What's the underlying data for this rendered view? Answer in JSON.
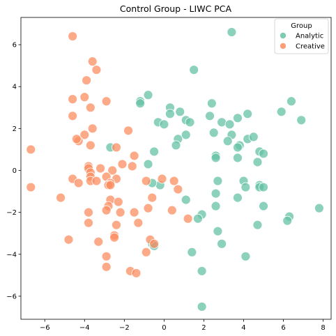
{
  "chart_data": {
    "type": "scatter",
    "title": "Control Group - LIWC PCA",
    "xlabel": "",
    "ylabel": "",
    "xlim": [
      -7.2,
      8.4
    ],
    "ylim": [
      -7.1,
      7.3
    ],
    "xticks": [
      -6,
      -4,
      -2,
      0,
      2,
      4,
      6,
      8
    ],
    "yticks": [
      -6,
      -4,
      -2,
      0,
      2,
      4,
      6
    ],
    "x_tick_labels": [
      "−6",
      "−4",
      "−2",
      "0",
      "2",
      "4",
      "6",
      "8"
    ],
    "y_tick_labels": [
      "−6",
      "−4",
      "−2",
      "0",
      "2",
      "4",
      "6"
    ],
    "grid": false,
    "legend": {
      "title": "Group",
      "placement": "top-right"
    },
    "series": [
      {
        "name": "Analytic",
        "color": "#66c2a5",
        "points": [
          [
            3.4,
            6.6
          ],
          [
            1.5,
            4.8
          ],
          [
            -0.8,
            3.6
          ],
          [
            -1.2,
            3.3
          ],
          [
            -1.2,
            3.2
          ],
          [
            0.3,
            3.0
          ],
          [
            0.3,
            2.7
          ],
          [
            0.8,
            2.8
          ],
          [
            -0.3,
            2.3
          ],
          [
            0.0,
            2.2
          ],
          [
            1.1,
            2.4
          ],
          [
            1.3,
            2.3
          ],
          [
            2.4,
            3.2
          ],
          [
            2.3,
            2.6
          ],
          [
            2.9,
            2.3
          ],
          [
            3.3,
            2.2
          ],
          [
            3.7,
            2.5
          ],
          [
            4.2,
            2.7
          ],
          [
            5.9,
            2.8
          ],
          [
            6.4,
            3.3
          ],
          [
            6.9,
            2.4
          ],
          [
            2.5,
            1.8
          ],
          [
            3.4,
            1.7
          ],
          [
            3.2,
            1.4
          ],
          [
            4.2,
            1.5
          ],
          [
            4.5,
            1.6
          ],
          [
            3.8,
            1.2
          ],
          [
            3.7,
            1.1
          ],
          [
            3.7,
            0.6
          ],
          [
            4.7,
            0.4
          ],
          [
            4.8,
            0.9
          ],
          [
            5.0,
            0.8
          ],
          [
            0.7,
            1.5
          ],
          [
            1.1,
            1.7
          ],
          [
            0.6,
            1.2
          ],
          [
            -2.7,
            1.1
          ],
          [
            -0.5,
            0.9
          ],
          [
            -0.8,
            0.3
          ],
          [
            2.6,
            0.7
          ],
          [
            2.6,
            0.6
          ],
          [
            2.7,
            -0.5
          ],
          [
            -0.2,
            -0.7
          ],
          [
            -0.6,
            -0.6
          ],
          [
            1.1,
            -1.4
          ],
          [
            2.6,
            -1.1
          ],
          [
            2.6,
            -1.7
          ],
          [
            1.9,
            -2.1
          ],
          [
            1.7,
            -2.3
          ],
          [
            3.7,
            -1.3
          ],
          [
            4.0,
            -0.5
          ],
          [
            4.1,
            -0.8
          ],
          [
            4.8,
            -0.7
          ],
          [
            4.8,
            -0.8
          ],
          [
            5.0,
            -0.8
          ],
          [
            5.0,
            -1.7
          ],
          [
            4.7,
            -2.6
          ],
          [
            6.3,
            -2.2
          ],
          [
            6.2,
            -2.4
          ],
          [
            7.8,
            -1.8
          ],
          [
            2.7,
            -2.9
          ],
          [
            2.9,
            -3.5
          ],
          [
            -0.6,
            -3.5
          ],
          [
            -0.5,
            -3.6
          ],
          [
            1.4,
            -3.9
          ],
          [
            4.1,
            -4.1
          ],
          [
            1.9,
            -4.8
          ],
          [
            1.9,
            -6.5
          ]
        ]
      },
      {
        "name": "Creative",
        "color": "#fc8d62",
        "points": [
          [
            -4.6,
            6.4
          ],
          [
            -3.6,
            5.2
          ],
          [
            -3.4,
            4.8
          ],
          [
            -3.9,
            4.3
          ],
          [
            -4.0,
            3.5
          ],
          [
            -4.6,
            3.4
          ],
          [
            -2.9,
            3.3
          ],
          [
            -3.7,
            3.0
          ],
          [
            -4.6,
            2.6
          ],
          [
            -3.6,
            2.0
          ],
          [
            -1.8,
            1.9
          ],
          [
            -4.0,
            1.7
          ],
          [
            -4.3,
            1.4
          ],
          [
            -4.4,
            1.5
          ],
          [
            -3.7,
            1.2
          ],
          [
            -2.4,
            1.1
          ],
          [
            -6.7,
            1.0
          ],
          [
            -1.5,
            0.7
          ],
          [
            -2.1,
            0.3
          ],
          [
            -1.6,
            0.2
          ],
          [
            -3.8,
            0.2
          ],
          [
            -3.8,
            0.1
          ],
          [
            -3.2,
            0.1
          ],
          [
            -2.6,
            0.0
          ],
          [
            -3.7,
            -0.1
          ],
          [
            -3.7,
            -0.3
          ],
          [
            -2.9,
            -0.3
          ],
          [
            -2.4,
            -0.4
          ],
          [
            -4.6,
            -0.4
          ],
          [
            -3.7,
            -0.5
          ],
          [
            -3.4,
            -0.5
          ],
          [
            -2.7,
            -0.6
          ],
          [
            -2.8,
            -0.7
          ],
          [
            -2.7,
            -0.7
          ],
          [
            -4.3,
            -0.6
          ],
          [
            -0.9,
            -0.5
          ],
          [
            -0.1,
            -0.4
          ],
          [
            0.5,
            -0.5
          ],
          [
            0.7,
            -0.9
          ],
          [
            -6.7,
            -0.8
          ],
          [
            -0.6,
            -1.3
          ],
          [
            -5.2,
            -1.3
          ],
          [
            -2.7,
            -1.4
          ],
          [
            -2.3,
            -1.5
          ],
          [
            -2.8,
            -1.7
          ],
          [
            -0.8,
            -1.8
          ],
          [
            0.4,
            -1.9
          ],
          [
            -2.9,
            -1.9
          ],
          [
            -3.8,
            -2.0
          ],
          [
            -1.5,
            -2.0
          ],
          [
            -2.2,
            -2.0
          ],
          [
            1.2,
            -2.3
          ],
          [
            -1.3,
            -2.5
          ],
          [
            -3.8,
            -2.5
          ],
          [
            -2.4,
            -2.6
          ],
          [
            -2.5,
            -3.1
          ],
          [
            -2.5,
            -3.2
          ],
          [
            -4.8,
            -3.3
          ],
          [
            -3.3,
            -3.4
          ],
          [
            -0.7,
            -3.3
          ],
          [
            -0.5,
            -3.5
          ],
          [
            -0.9,
            -3.9
          ],
          [
            -2.9,
            -4.1
          ],
          [
            -2.9,
            -4.6
          ],
          [
            -1.7,
            -4.8
          ],
          [
            -1.4,
            -4.9
          ]
        ]
      }
    ]
  }
}
